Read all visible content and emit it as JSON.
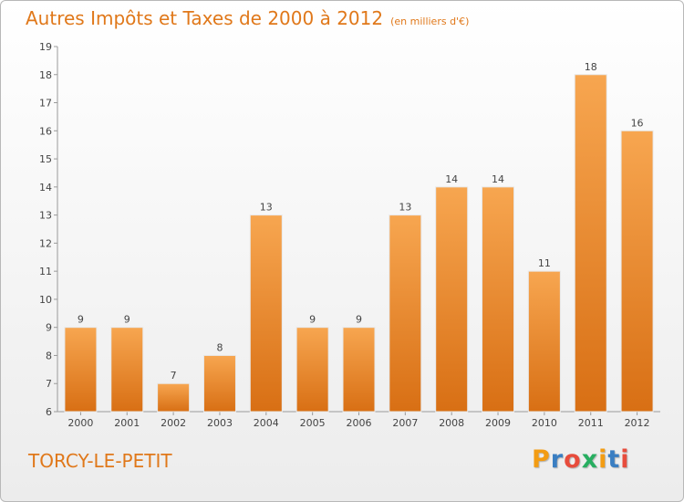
{
  "title": "Autres Impôts et Taxes de 2000 à 2012",
  "subtitle": "(en milliers d'€)",
  "commune": "TORCY-LE-PETIT",
  "brand": {
    "letters": [
      "P",
      "r",
      "o",
      "x",
      "i",
      "t",
      "i"
    ],
    "colors": [
      "#f39c12",
      "#3a7ec2",
      "#e74c3c",
      "#27ae60",
      "#f39c12",
      "#3a7ec2",
      "#e74c3c"
    ]
  },
  "colors": {
    "bar": "#f0922e",
    "bar_dark": "#d9751a",
    "text": "#e0781a"
  },
  "chart_data": {
    "type": "bar",
    "categories": [
      "2000",
      "2001",
      "2002",
      "2003",
      "2004",
      "2005",
      "2006",
      "2007",
      "2008",
      "2009",
      "2010",
      "2011",
      "2012"
    ],
    "values": [
      9,
      9,
      7,
      8,
      13,
      9,
      9,
      13,
      14,
      14,
      11,
      18,
      16
    ],
    "ylim": [
      6,
      19
    ],
    "yticks": [
      6,
      7,
      8,
      9,
      10,
      11,
      12,
      13,
      14,
      15,
      16,
      17,
      18,
      19
    ],
    "title": "Autres Impôts et Taxes de 2000 à 2012",
    "subtitle": "(en milliers d'€)",
    "grid": false
  }
}
